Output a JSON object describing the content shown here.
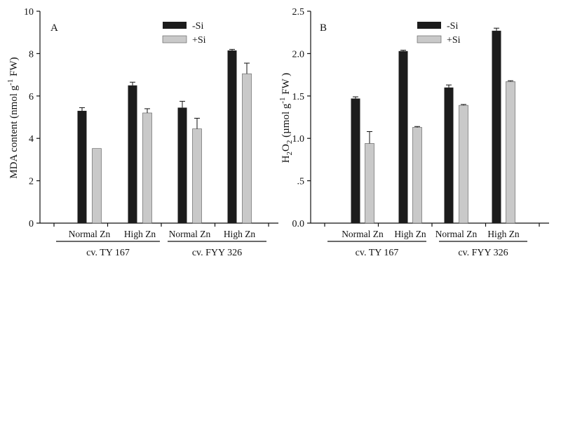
{
  "chart_data": [
    {
      "type": "bar",
      "panel_label": "A",
      "ylabel_main": "MDA content (nmol g",
      "ylabel_sup": "-1",
      "ylabel_tail": " FW)",
      "ylim": [
        0,
        10
      ],
      "yticks": [
        "0",
        "2",
        "4",
        "6",
        "8",
        "10"
      ],
      "categories": [
        "Normal Zn",
        "High Zn",
        "Normal Zn",
        "High Zn"
      ],
      "cultivars": [
        {
          "label": "cv. TY 167",
          "span": [
            0,
            1
          ]
        },
        {
          "label": "cv. FYY 326",
          "span": [
            2,
            3
          ]
        }
      ],
      "legend_position": "top-right",
      "series": [
        {
          "name": "-Si",
          "color": "#1c1c1c",
          "values": [
            5.3,
            6.5,
            5.45,
            8.15
          ],
          "errors": [
            0.15,
            0.15,
            0.3,
            0.05
          ]
        },
        {
          "name": "+Si",
          "color": "#c9c9c9",
          "values": [
            3.52,
            5.2,
            4.45,
            7.05
          ],
          "errors": [
            0.0,
            0.2,
            0.5,
            0.5
          ]
        }
      ]
    },
    {
      "type": "bar",
      "panel_label": "B",
      "ylabel_main": "H2O2 (µmol g",
      "ylabel_sup": "-1",
      "ylabel_tail": " FW )",
      "ylim": [
        0,
        2.5
      ],
      "yticks": [
        "0.0",
        ".5",
        "1.0",
        "1.5",
        "2.0",
        "2.5"
      ],
      "categories": [
        "Normal Zn",
        "High Zn",
        "Normal Zn",
        "High Zn"
      ],
      "cultivars": [
        {
          "label": "cv. TY 167",
          "span": [
            0,
            1
          ]
        },
        {
          "label": "cv. FYY 326",
          "span": [
            2,
            3
          ]
        }
      ],
      "legend_position": "top-right",
      "series": [
        {
          "name": "-Si",
          "color": "#1c1c1c",
          "values": [
            1.47,
            2.03,
            1.6,
            2.27
          ],
          "errors": [
            0.02,
            0.01,
            0.03,
            0.03
          ]
        },
        {
          "name": "+Si",
          "color": "#c9c9c9",
          "values": [
            0.94,
            1.13,
            1.39,
            1.67
          ],
          "errors": [
            0.14,
            0.01,
            0.01,
            0.01
          ]
        }
      ]
    }
  ]
}
